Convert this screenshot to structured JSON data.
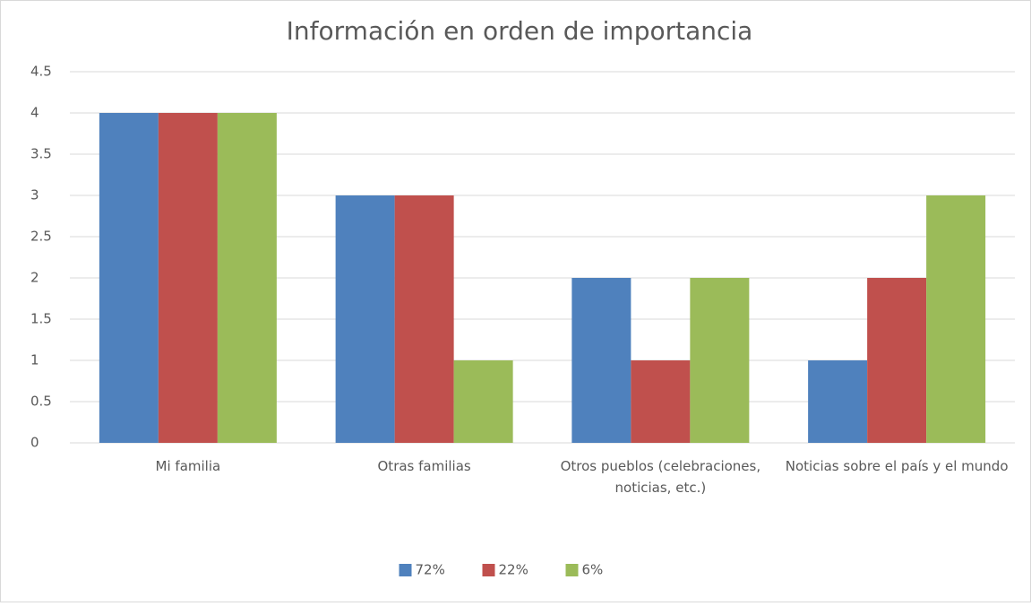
{
  "chart_data": {
    "type": "bar",
    "title": "Información en orden de importancia",
    "categories": [
      "Mi familia",
      "Otras familias",
      "Otros pueblos (celebraciones, noticias, etc.)",
      "Noticias sobre el país y el mundo"
    ],
    "series": [
      {
        "name": "72%",
        "color": "#4f81bd",
        "values": [
          4,
          3,
          2,
          1
        ]
      },
      {
        "name": "22%",
        "color": "#c0504d",
        "values": [
          4,
          3,
          1,
          2
        ]
      },
      {
        "name": "6%",
        "color": "#9bbb59",
        "values": [
          4,
          1,
          2,
          3
        ]
      }
    ],
    "ylim": [
      0,
      4.5
    ],
    "yticks": [
      0,
      0.5,
      1,
      1.5,
      2,
      2.5,
      3,
      3.5,
      4,
      4.5
    ],
    "grid": true,
    "legend": "bottom"
  }
}
